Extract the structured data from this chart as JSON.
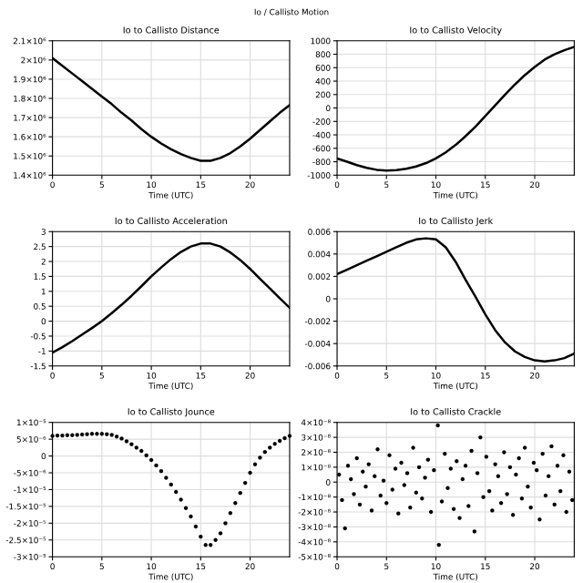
{
  "chart_data": [
    {
      "type": "line",
      "title": "Io to Callisto Distance",
      "xlabel": "Time (UTC)",
      "annotations": [
        "Io / Callisto Motion"
      ],
      "grid": true,
      "xlim": [
        0,
        24
      ],
      "xticks": [
        0,
        5,
        10,
        15,
        20
      ],
      "ylim": [
        1400000,
        2100000
      ],
      "yticks": [
        {
          "value": 1400000,
          "label": "1.4×10⁶"
        },
        {
          "value": 1500000,
          "label": "1.5×10⁶"
        },
        {
          "value": 1600000,
          "label": "1.6×10⁶"
        },
        {
          "value": 1700000,
          "label": "1.7×10⁶"
        },
        {
          "value": 1800000,
          "label": "1.8×10⁶"
        },
        {
          "value": 1900000,
          "label": "1.9×10⁶"
        },
        {
          "value": 2000000,
          "label": "2×10⁶"
        },
        {
          "value": 2100000,
          "label": "2.1×10⁶"
        }
      ],
      "series": [
        {
          "color": "#000000",
          "x": [
            0,
            1,
            2,
            3,
            4,
            5,
            6,
            7,
            8,
            9,
            10,
            11,
            12,
            13,
            14,
            15,
            16,
            17,
            18,
            19,
            20,
            21,
            22,
            23,
            24
          ],
          "values": [
            2010000,
            1970000,
            1930000,
            1890000,
            1850000,
            1810000,
            1770000,
            1725000,
            1685000,
            1640000,
            1600000,
            1565000,
            1535000,
            1510000,
            1490000,
            1475000,
            1475000,
            1490000,
            1515000,
            1550000,
            1590000,
            1635000,
            1680000,
            1725000,
            1765000
          ]
        }
      ]
    },
    {
      "type": "line",
      "title": "Io to Callisto Velocity",
      "xlabel": "Time (UTC)",
      "grid": true,
      "xlim": [
        0,
        24
      ],
      "xticks": [
        0,
        5,
        10,
        15,
        20
      ],
      "ylim": [
        -1000,
        1000
      ],
      "yticks": [
        -1000,
        -800,
        -600,
        -400,
        -200,
        0,
        200,
        400,
        600,
        800,
        1000
      ],
      "series": [
        {
          "color": "#000000",
          "x": [
            0,
            1,
            2,
            3,
            4,
            5,
            6,
            7,
            8,
            9,
            10,
            11,
            12,
            13,
            14,
            15,
            16,
            17,
            18,
            19,
            20,
            21,
            22,
            23,
            24
          ],
          "values": [
            -750,
            -800,
            -850,
            -890,
            -920,
            -930,
            -925,
            -905,
            -870,
            -820,
            -750,
            -660,
            -550,
            -420,
            -280,
            -120,
            40,
            200,
            350,
            490,
            610,
            720,
            800,
            860,
            910
          ]
        }
      ]
    },
    {
      "type": "line",
      "title": "Io to Callisto Acceleration",
      "xlabel": "Time (UTC)",
      "grid": true,
      "xlim": [
        0,
        24
      ],
      "xticks": [
        0,
        5,
        10,
        15,
        20
      ],
      "ylim": [
        -1.5,
        3
      ],
      "yticks": [
        -1.5,
        -1,
        -0.5,
        0,
        0.5,
        1,
        1.5,
        2,
        2.5,
        3
      ],
      "series": [
        {
          "color": "#000000",
          "x": [
            0,
            1,
            2,
            3,
            4,
            5,
            6,
            7,
            8,
            9,
            10,
            11,
            12,
            13,
            14,
            15,
            16,
            17,
            18,
            19,
            20,
            21,
            22,
            23,
            24
          ],
          "values": [
            -1.05,
            -0.87,
            -0.67,
            -0.45,
            -0.23,
            0,
            0.27,
            0.55,
            0.85,
            1.17,
            1.5,
            1.8,
            2.08,
            2.32,
            2.5,
            2.6,
            2.6,
            2.5,
            2.3,
            2.05,
            1.75,
            1.42,
            1.1,
            0.77,
            0.45
          ]
        }
      ]
    },
    {
      "type": "line",
      "title": "Io to Callisto Jerk",
      "xlabel": "Time (UTC)",
      "grid": true,
      "xlim": [
        0,
        24
      ],
      "xticks": [
        0,
        5,
        10,
        15,
        20
      ],
      "ylim": [
        -0.006,
        0.006
      ],
      "yticks": [
        -0.006,
        -0.004,
        -0.002,
        0,
        0.002,
        0.004,
        0.006
      ],
      "series": [
        {
          "color": "#000000",
          "x": [
            0,
            1,
            2,
            3,
            4,
            5,
            6,
            7,
            8,
            9,
            10,
            11,
            12,
            13,
            14,
            15,
            16,
            17,
            18,
            19,
            20,
            21,
            22,
            23,
            24
          ],
          "values": [
            0.0022,
            0.0026,
            0.003,
            0.0034,
            0.0038,
            0.0042,
            0.0046,
            0.005,
            0.0053,
            0.0054,
            0.0053,
            0.0046,
            0.0033,
            0.0017,
            0.0002,
            -0.0014,
            -0.0028,
            -0.0039,
            -0.0047,
            -0.0052,
            -0.0055,
            -0.0056,
            -0.0055,
            -0.0053,
            -0.0049
          ]
        }
      ]
    },
    {
      "type": "scatter",
      "title": "Io to Callisto Jounce",
      "xlabel": "Time (UTC)",
      "grid": true,
      "marker": "circle",
      "xlim": [
        0,
        24
      ],
      "xticks": [
        0,
        5,
        10,
        15,
        20
      ],
      "ylim": [
        -3e-05,
        1e-05
      ],
      "yticks": [
        {
          "value": -3e-05,
          "label": "-3×10⁻⁵"
        },
        {
          "value": -2.5e-05,
          "label": "-2.5×10⁻⁵"
        },
        {
          "value": -2e-05,
          "label": "-2×10⁻⁵"
        },
        {
          "value": -1.5e-05,
          "label": "-1.5×10⁻⁵"
        },
        {
          "value": -1e-05,
          "label": "-1×10⁻⁵"
        },
        {
          "value": -5e-06,
          "label": "-5×10⁻⁶"
        },
        0,
        {
          "value": 5e-06,
          "label": "5×10⁻⁶"
        },
        {
          "value": 1e-05,
          "label": "1×10⁻⁵"
        }
      ],
      "series": [
        {
          "color": "#000000",
          "x": [
            0,
            0.5,
            1,
            1.5,
            2,
            2.5,
            3,
            3.5,
            4,
            4.5,
            5,
            5.5,
            6,
            6.5,
            7,
            7.5,
            8,
            8.5,
            9,
            9.5,
            10,
            10.5,
            11,
            11.5,
            12,
            12.5,
            13,
            13.5,
            14,
            14.5,
            15,
            15.5,
            16,
            16.5,
            17,
            17.5,
            18,
            18.5,
            19,
            19.5,
            20,
            20.5,
            21,
            21.5,
            22,
            22.5,
            23,
            23.5,
            24
          ],
          "values": [
            6e-06,
            6.1e-06,
            6.1e-06,
            6.2e-06,
            6.2e-06,
            6.3e-06,
            6.4e-06,
            6.5e-06,
            6.6e-06,
            6.6e-06,
            6.6e-06,
            6.5e-06,
            6.3e-06,
            5.8e-06,
            5.2e-06,
            4.4e-06,
            3.5e-06,
            2.5e-06,
            1.5e-06,
            2e-07,
            -1.2e-06,
            -2.8e-06,
            -4.5e-06,
            -6.5e-06,
            -8.5e-06,
            -1.07e-05,
            -1.3e-05,
            -1.55e-05,
            -1.8e-05,
            -2.1e-05,
            -2.4e-05,
            -2.65e-05,
            -2.65e-05,
            -2.5e-05,
            -2.3e-05,
            -2e-05,
            -1.7e-05,
            -1.4e-05,
            -1.1e-05,
            -8e-06,
            -5e-06,
            -2.5e-06,
            -5e-07,
            1.2e-06,
            2.5e-06,
            3.6e-06,
            4.5e-06,
            5.3e-06,
            6e-06
          ]
        }
      ]
    },
    {
      "type": "scatter",
      "title": "Io to Callisto Crackle",
      "xlabel": "Time (UTC)",
      "grid": true,
      "marker": "circle",
      "xlim": [
        0,
        24
      ],
      "xticks": [
        0,
        5,
        10,
        15,
        20
      ],
      "ylim": [
        -5e-08,
        4e-08
      ],
      "yticks": [
        {
          "value": -5e-08,
          "label": "-5×10⁻⁸"
        },
        {
          "value": -4e-08,
          "label": "-4×10⁻⁸"
        },
        {
          "value": -3e-08,
          "label": "-3×10⁻⁸"
        },
        {
          "value": -2e-08,
          "label": "-2×10⁻⁸"
        },
        {
          "value": -1e-08,
          "label": "-1×10⁻⁸"
        },
        0,
        {
          "value": 1e-08,
          "label": "1×10⁻⁸"
        },
        {
          "value": 2e-08,
          "label": "2×10⁻⁸"
        },
        {
          "value": 3e-08,
          "label": "3×10⁻⁸"
        },
        {
          "value": 4e-08,
          "label": "4×10⁻⁸"
        }
      ],
      "series": [
        {
          "color": "#000000",
          "x": [
            0.2,
            0.5,
            0.8,
            1.1,
            1.4,
            1.7,
            2.0,
            2.3,
            2.6,
            2.9,
            3.2,
            3.5,
            3.8,
            4.1,
            4.4,
            4.7,
            5.0,
            5.3,
            5.6,
            5.9,
            6.2,
            6.5,
            6.8,
            7.1,
            7.4,
            7.7,
            8.0,
            8.3,
            8.6,
            8.9,
            9.2,
            9.5,
            9.8,
            10.2,
            10.3,
            10.6,
            10.9,
            11.2,
            11.5,
            11.8,
            12.1,
            12.4,
            12.7,
            13.0,
            13.3,
            13.6,
            13.9,
            14.2,
            14.5,
            14.8,
            15.1,
            15.4,
            15.7,
            16.0,
            16.3,
            16.6,
            16.9,
            17.2,
            17.5,
            17.8,
            18.1,
            18.4,
            18.7,
            19.0,
            19.3,
            19.6,
            19.9,
            20.2,
            20.5,
            20.8,
            21.1,
            21.4,
            21.7,
            22.0,
            22.3,
            22.6,
            22.9,
            23.2,
            23.5,
            23.8
          ],
          "values": [
            5e-09,
            -1.2e-08,
            -3.1e-08,
            1.1e-08,
            2e-09,
            -8e-09,
            1.6e-08,
            -1.5e-08,
            7e-09,
            -3e-09,
            1.2e-08,
            -1.9e-08,
            4e-09,
            2.2e-08,
            -9e-09,
            1e-09,
            -1.4e-08,
            1.8e-08,
            -5e-09,
            9e-09,
            -2.1e-08,
            1.3e-08,
            -2e-09,
            6e-09,
            -1.7e-08,
            2.3e-08,
            -7e-09,
            1e-08,
            -1.1e-08,
            3e-09,
            1.5e-08,
            -2e-08,
            8e-09,
            3.8e-08,
            -4.2e-08,
            -1.3e-08,
            1.9e-08,
            -4e-09,
            9e-09,
            -1.8e-08,
            1.4e-08,
            -2.4e-08,
            2e-09,
            1.1e-08,
            -1.6e-08,
            2.1e-08,
            -3.3e-08,
            6e-09,
            3e-08,
            -1e-08,
            1.7e-08,
            -6e-09,
            -1.9e-08,
            1.2e-08,
            4e-09,
            -1.4e-08,
            2e-08,
            -8e-09,
            1e-08,
            -2.2e-08,
            5e-09,
            1.6e-08,
            -1.1e-08,
            2.3e-08,
            -3e-09,
            -1.7e-08,
            1.3e-08,
            8e-09,
            -2.5e-08,
            1.9e-08,
            -9e-09,
            4e-09,
            2.4e-08,
            -1.5e-08,
            1.1e-08,
            -6e-09,
            1.8e-08,
            -2e-08,
            7e-09,
            -1.2e-08
          ]
        }
      ]
    }
  ]
}
